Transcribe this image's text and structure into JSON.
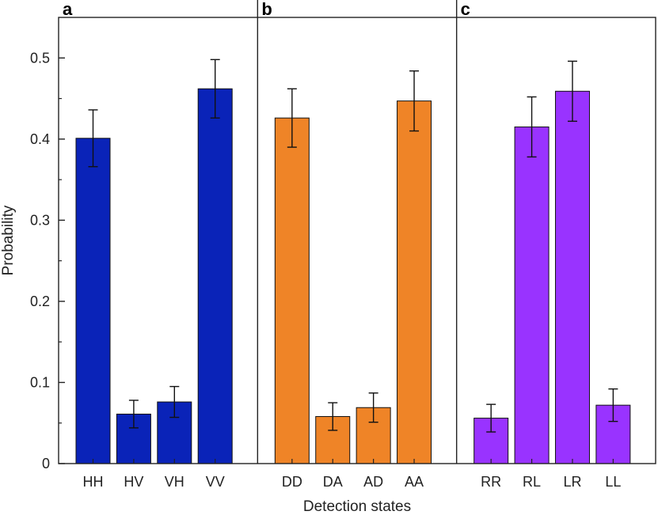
{
  "chart_data": {
    "type": "bar",
    "xlabel": "Detection states",
    "ylabel": "Probability",
    "ylim": [
      0,
      0.55
    ],
    "yticks": [
      0,
      0.1,
      0.2,
      0.3,
      0.4,
      0.5
    ],
    "ytick_labels": [
      "0",
      "0.1",
      "0.2",
      "0.3",
      "0.4",
      "0.5"
    ],
    "grid": false,
    "panels": [
      {
        "label": "a",
        "color": "#0a23b8",
        "categories": [
          "HH",
          "HV",
          "VH",
          "VV"
        ],
        "values": [
          0.401,
          0.061,
          0.076,
          0.462
        ],
        "errors": [
          0.035,
          0.017,
          0.019,
          0.036
        ]
      },
      {
        "label": "b",
        "color": "#ef8427",
        "categories": [
          "DD",
          "DA",
          "AD",
          "AA"
        ],
        "values": [
          0.426,
          0.058,
          0.069,
          0.447
        ],
        "errors": [
          0.036,
          0.017,
          0.018,
          0.037
        ]
      },
      {
        "label": "c",
        "color": "#9933ff",
        "categories": [
          "RR",
          "RL",
          "LR",
          "LL"
        ],
        "values": [
          0.056,
          0.415,
          0.459,
          0.072
        ],
        "errors": [
          0.017,
          0.037,
          0.037,
          0.02
        ]
      }
    ]
  }
}
